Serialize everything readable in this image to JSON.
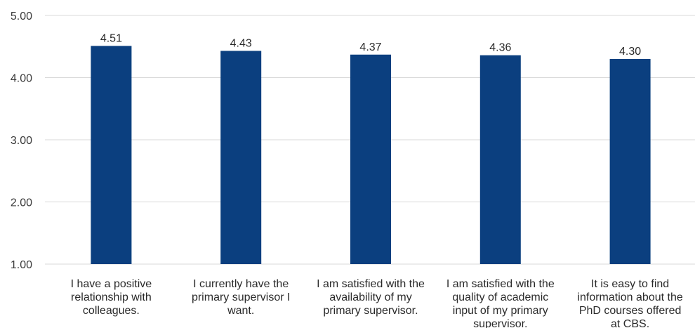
{
  "chart_data": {
    "type": "bar",
    "categories": [
      [
        "I have a positive",
        "relationship with",
        "colleagues."
      ],
      [
        "I currently have the",
        "primary supervisor I",
        "want."
      ],
      [
        "I am satisfied with the",
        "availability of my",
        "primary supervisor."
      ],
      [
        "I am satisfied with the",
        "quality of academic",
        "input of my primary",
        "supervisor."
      ],
      [
        "It is easy to find",
        "information about the",
        "PhD courses offered",
        "at CBS."
      ]
    ],
    "values": [
      4.51,
      4.43,
      4.37,
      4.36,
      4.3
    ],
    "value_labels": [
      "4.51",
      "4.43",
      "4.37",
      "4.36",
      "4.30"
    ],
    "ylim": [
      1.0,
      5.0
    ],
    "yticks": [
      1.0,
      2.0,
      3.0,
      4.0,
      5.0
    ],
    "ytick_labels": [
      "1.00",
      "2.00",
      "3.00",
      "4.00",
      "5.00"
    ],
    "bar_color": "#0b3f7f",
    "grid": true,
    "legend": "none"
  }
}
